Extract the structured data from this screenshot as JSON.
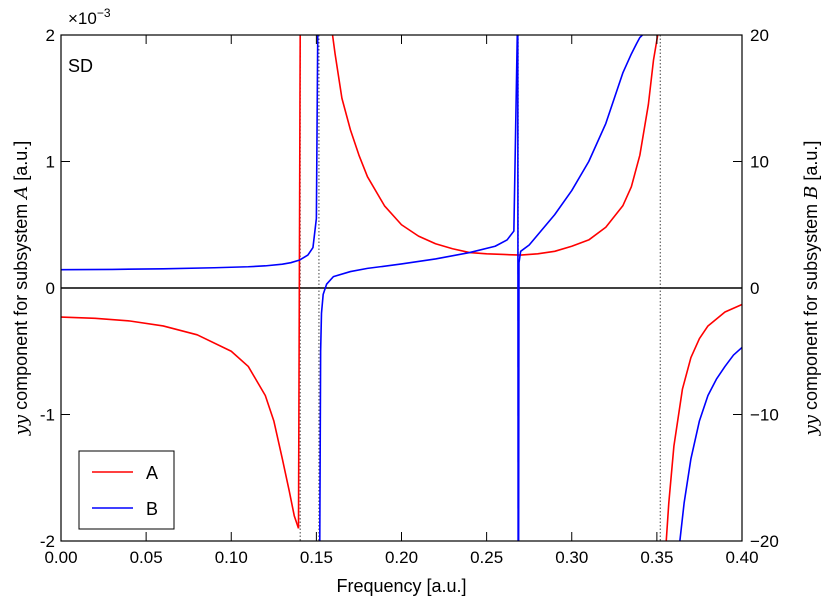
{
  "chart_data": {
    "type": "line",
    "panel_label": "SD",
    "xlabel": "Frequency [a.u.]",
    "ylabel_left": {
      "prefix": "yy",
      "middle": " component for subsystem ",
      "symbol": "A",
      "suffix": " [a.u.]"
    },
    "ylabel_right": {
      "prefix": "yy",
      "middle": " component for subsystem ",
      "symbol": "B",
      "suffix": " [a.u.]"
    },
    "left_axis_exponent": {
      "base": "×10",
      "power": "−3"
    },
    "xlim": [
      0.0,
      0.4
    ],
    "ylim_left": [
      -2,
      2
    ],
    "ylim_right": [
      -20,
      20
    ],
    "x_ticks": [
      "0.00",
      "0.05",
      "0.10",
      "0.15",
      "0.20",
      "0.25",
      "0.30",
      "0.35",
      "0.40"
    ],
    "y_left_ticks": [
      "-2",
      "-1",
      "0",
      "1",
      "2"
    ],
    "y_right_ticks": [
      "−20",
      "−10",
      "0",
      "10",
      "20"
    ],
    "vertical_reference_lines": [
      0.1405,
      0.1515,
      0.2685,
      0.352
    ],
    "legend": {
      "position": "lower-left",
      "entries": [
        "A",
        "B"
      ]
    },
    "series": [
      {
        "name": "A",
        "axis": "left",
        "color": "#ff0000",
        "segments": [
          {
            "x": [
              0.0,
              0.02,
              0.04,
              0.06,
              0.08,
              0.1,
              0.11,
              0.12,
              0.125,
              0.13,
              0.134,
              0.137,
              0.1395
            ],
            "y": [
              -0.23,
              -0.24,
              -0.26,
              -0.3,
              -0.37,
              -0.5,
              -0.62,
              -0.85,
              -1.05,
              -1.35,
              -1.6,
              -1.8,
              -1.9
            ]
          },
          {
            "x": [
              0.1395,
              0.1405
            ],
            "y": [
              -1.9,
              2.0
            ]
          },
          {
            "x": [
              0.1595,
              0.161,
              0.165,
              0.17,
              0.175,
              0.18,
              0.19,
              0.2,
              0.21,
              0.22,
              0.23,
              0.24,
              0.25,
              0.26,
              0.27,
              0.28,
              0.29,
              0.3,
              0.31,
              0.32,
              0.33,
              0.335,
              0.34,
              0.345,
              0.348,
              0.3505
            ],
            "y": [
              2.0,
              1.85,
              1.5,
              1.25,
              1.05,
              0.88,
              0.65,
              0.5,
              0.41,
              0.35,
              0.31,
              0.28,
              0.27,
              0.265,
              0.26,
              0.27,
              0.29,
              0.33,
              0.38,
              0.48,
              0.65,
              0.8,
              1.05,
              1.45,
              1.8,
              2.0
            ]
          },
          {
            "x": [
              0.3555,
              0.357,
              0.36,
              0.365,
              0.37,
              0.375,
              0.38,
              0.39,
              0.4
            ],
            "y": [
              -2.0,
              -1.7,
              -1.25,
              -0.8,
              -0.55,
              -0.4,
              -0.3,
              -0.19,
              -0.13
            ]
          }
        ]
      },
      {
        "name": "B",
        "axis": "right",
        "color": "#0000ff",
        "segments": [
          {
            "x": [
              0.0,
              0.03,
              0.06,
              0.09,
              0.11,
              0.12,
              0.13,
              0.135,
              0.14,
              0.145,
              0.148,
              0.15,
              0.1508
            ],
            "y": [
              1.45,
              1.47,
              1.52,
              1.6,
              1.68,
              1.75,
              1.88,
              2.0,
              2.2,
              2.6,
              3.2,
              5.5,
              20.0
            ]
          },
          {
            "x": [
              0.152,
              0.1525,
              0.153,
              0.154,
              0.156,
              0.16,
              0.17,
              0.18,
              0.2,
              0.22,
              0.24,
              0.255,
              0.262,
              0.266,
              0.268
            ],
            "y": [
              -20.0,
              -5.0,
              -2.0,
              -0.5,
              0.3,
              0.9,
              1.3,
              1.55,
              1.9,
              2.3,
              2.8,
              3.3,
              3.8,
              4.5,
              20.0
            ]
          },
          {
            "x": [
              0.2683,
              0.2685
            ],
            "y": [
              20.0,
              -20.0
            ]
          },
          {
            "x": [
              0.2688,
              0.269,
              0.27,
              0.275,
              0.28,
              0.29,
              0.3,
              0.31,
              0.32,
              0.325,
              0.33,
              0.335,
              0.338,
              0.34,
              0.3415
            ],
            "y": [
              -20.0,
              2.0,
              2.9,
              3.4,
              4.2,
              5.8,
              7.7,
              10.0,
              13.0,
              15.0,
              17.0,
              18.5,
              19.3,
              19.8,
              20.0
            ]
          },
          {
            "x": [
              0.3635,
              0.366,
              0.37,
              0.375,
              0.38,
              0.385,
              0.39,
              0.395,
              0.4
            ],
            "y": [
              -20.0,
              -17.0,
              -13.5,
              -10.5,
              -8.5,
              -7.2,
              -6.2,
              -5.3,
              -4.7
            ]
          }
        ]
      }
    ]
  }
}
